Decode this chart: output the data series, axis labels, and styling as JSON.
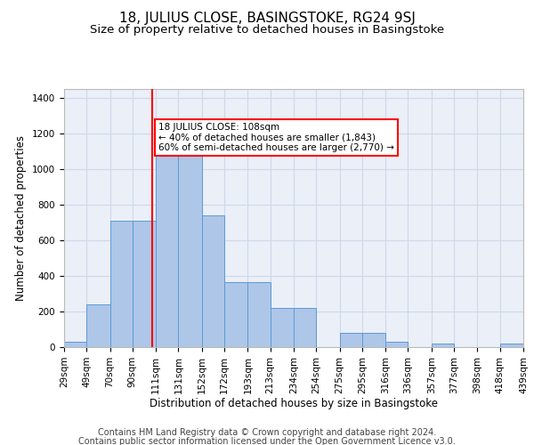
{
  "title": "18, JULIUS CLOSE, BASINGSTOKE, RG24 9SJ",
  "subtitle": "Size of property relative to detached houses in Basingstoke",
  "xlabel": "Distribution of detached houses by size in Basingstoke",
  "ylabel": "Number of detached properties",
  "footnote1": "Contains HM Land Registry data © Crown copyright and database right 2024.",
  "footnote2": "Contains public sector information licensed under the Open Government Licence v3.0.",
  "bar_edges": [
    29,
    49,
    70,
    90,
    111,
    131,
    152,
    172,
    193,
    213,
    234,
    254,
    275,
    295,
    316,
    336,
    357,
    377,
    398,
    418,
    439
  ],
  "bar_heights": [
    30,
    240,
    710,
    710,
    1090,
    1090,
    740,
    365,
    365,
    220,
    220,
    0,
    80,
    80,
    30,
    0,
    20,
    0,
    0,
    20
  ],
  "bar_color": "#aec6e8",
  "bar_edgecolor": "#5b9bd5",
  "grid_color": "#d0d8e8",
  "background_color": "#eaeff8",
  "vline_x": 108,
  "vline_color": "red",
  "annotation_text": "18 JULIUS CLOSE: 108sqm\n← 40% of detached houses are smaller (1,843)\n60% of semi-detached houses are larger (2,770) →",
  "annotation_box_edgecolor": "red",
  "ylim": [
    0,
    1450
  ],
  "yticks": [
    0,
    200,
    400,
    600,
    800,
    1000,
    1200,
    1400
  ],
  "tick_labels": [
    "29sqm",
    "49sqm",
    "70sqm",
    "90sqm",
    "111sqm",
    "131sqm",
    "152sqm",
    "172sqm",
    "193sqm",
    "213sqm",
    "234sqm",
    "254sqm",
    "275sqm",
    "295sqm",
    "316sqm",
    "336sqm",
    "357sqm",
    "377sqm",
    "398sqm",
    "418sqm",
    "439sqm"
  ],
  "title_fontsize": 11,
  "subtitle_fontsize": 9.5,
  "label_fontsize": 8.5,
  "tick_fontsize": 7.5,
  "footnote_fontsize": 7,
  "ann_fontsize": 7.5
}
